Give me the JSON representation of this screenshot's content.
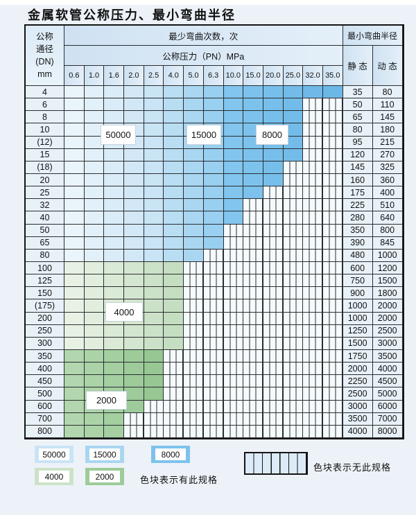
{
  "title": "金属软管公称压力、最小弯曲半径",
  "table": {
    "corner": [
      "公称",
      "通径",
      "(DN)",
      "mm"
    ],
    "bend_header": "最少弯曲次数，次",
    "radius_header": "最小弯曲半径",
    "pressure_header": "公称压力（PN）MPa",
    "static_label": "静 态",
    "dynamic_label": "动 态",
    "pressures": [
      "0.6",
      "1.0",
      "1.6",
      "2.0",
      "2.5",
      "4.0",
      "5.0",
      "6.3",
      "10.0",
      "15.0",
      "20.0",
      "25.0",
      "32.0",
      "35.0"
    ],
    "rows": [
      {
        "dn": "4",
        "colored": 14,
        "palette": "blue",
        "static": "35",
        "dynamic": "80"
      },
      {
        "dn": "6",
        "colored": 12,
        "palette": "blue",
        "static": "50",
        "dynamic": "110"
      },
      {
        "dn": "8",
        "colored": 12,
        "palette": "blue",
        "static": "65",
        "dynamic": "145"
      },
      {
        "dn": "10",
        "colored": 12,
        "palette": "blue",
        "static": "80",
        "dynamic": "180"
      },
      {
        "dn": "(12)",
        "colored": 12,
        "palette": "blue",
        "static": "95",
        "dynamic": "215"
      },
      {
        "dn": "15",
        "colored": 12,
        "palette": "blue",
        "static": "120",
        "dynamic": "270"
      },
      {
        "dn": "(18)",
        "colored": 11,
        "palette": "blue",
        "static": "145",
        "dynamic": "325"
      },
      {
        "dn": "20",
        "colored": 11,
        "palette": "blue",
        "static": "160",
        "dynamic": "360"
      },
      {
        "dn": "25",
        "colored": 10,
        "palette": "blue",
        "static": "175",
        "dynamic": "400"
      },
      {
        "dn": "32",
        "colored": 9,
        "palette": "blue",
        "static": "225",
        "dynamic": "510"
      },
      {
        "dn": "40",
        "colored": 9,
        "palette": "blue",
        "static": "280",
        "dynamic": "640"
      },
      {
        "dn": "50",
        "colored": 8,
        "palette": "blue",
        "static": "350",
        "dynamic": "800"
      },
      {
        "dn": "65",
        "colored": 8,
        "palette": "blue",
        "static": "390",
        "dynamic": "845"
      },
      {
        "dn": "80",
        "colored": 7,
        "palette": "blue",
        "static": "480",
        "dynamic": "1000"
      },
      {
        "dn": "100",
        "colored": 6,
        "palette": "green4",
        "static": "600",
        "dynamic": "1200"
      },
      {
        "dn": "125",
        "colored": 6,
        "palette": "green4",
        "static": "750",
        "dynamic": "1500"
      },
      {
        "dn": "150",
        "colored": 6,
        "palette": "green4",
        "static": "900",
        "dynamic": "1800"
      },
      {
        "dn": "(175)",
        "colored": 6,
        "palette": "green4",
        "static": "1000",
        "dynamic": "2000"
      },
      {
        "dn": "200",
        "colored": 6,
        "palette": "green4",
        "static": "1000",
        "dynamic": "2000"
      },
      {
        "dn": "250",
        "colored": 6,
        "palette": "green4",
        "static": "1250",
        "dynamic": "2500"
      },
      {
        "dn": "300",
        "colored": 6,
        "palette": "green4",
        "static": "1500",
        "dynamic": "3000"
      },
      {
        "dn": "350",
        "colored": 5,
        "palette": "green2",
        "static": "1750",
        "dynamic": "3500"
      },
      {
        "dn": "400",
        "colored": 5,
        "palette": "green2",
        "static": "2000",
        "dynamic": "4000"
      },
      {
        "dn": "450",
        "colored": 5,
        "palette": "green2",
        "static": "2250",
        "dynamic": "4500"
      },
      {
        "dn": "500",
        "colored": 5,
        "palette": "green2",
        "static": "2500",
        "dynamic": "5000"
      },
      {
        "dn": "600",
        "colored": 4,
        "palette": "green2",
        "static": "3000",
        "dynamic": "6000"
      },
      {
        "dn": "700",
        "colored": 3,
        "palette": "green2",
        "static": "3500",
        "dynamic": "7000"
      },
      {
        "dn": "800",
        "colored": 3,
        "palette": "green2",
        "static": "4000",
        "dynamic": "8000"
      }
    ]
  },
  "colors": {
    "blue": [
      "#eaf4fb",
      "#e2f0f9",
      "#daecf8",
      "#d2e8f6",
      "#c9e4f5",
      "#b9ddf3",
      "#a9d6f1",
      "#99cff0",
      "#82c5ee",
      "#7dc2ec",
      "#77bfeb",
      "#73bce9",
      "#6fb9e8",
      "#6bb7e6"
    ],
    "green4": [
      "#e8f2e4",
      "#e1eedd",
      "#daead6",
      "#d3e6cf",
      "#cce2c8",
      "#c5dec1"
    ],
    "green2": [
      "#b2d7ae",
      "#abd3a7",
      "#a4cfa0",
      "#9dcb99",
      "#97c793",
      "#90c38c"
    ],
    "stripe_fill": "#f5fafd",
    "grid_line": "#2a2d30",
    "header_bg": "#d8e8f5",
    "label_cell_bg": "#e8f1f8"
  },
  "overlays": {
    "o50000": {
      "label": "50000"
    },
    "o15000": {
      "label": "15000"
    },
    "o8000": {
      "label": "8000"
    },
    "o4000": {
      "label": "4000"
    },
    "o2000": {
      "label": "2000"
    }
  },
  "legend": {
    "items": [
      {
        "label": "50000",
        "color": "#c9e4f5"
      },
      {
        "label": "15000",
        "color": "#a9d6f1"
      },
      {
        "label": "8000",
        "color": "#7dc2ec"
      },
      {
        "label": "4000",
        "color": "#cce2c8"
      },
      {
        "label": "2000",
        "color": "#9dcb99"
      }
    ],
    "available_note": "色块表示有此规格",
    "unavailable_note": "色块表示无此规格"
  },
  "chart_data": {
    "type": "table",
    "title": "金属软管公称压力、最小弯曲半径",
    "column_group_headers": [
      "公称通径(DN)mm",
      "最少弯曲次数，次 — 公称压力（PN）MPa",
      "最小弯曲半径"
    ],
    "pressure_columns_mpa": [
      0.6,
      1.0,
      1.6,
      2.0,
      2.5,
      4.0,
      5.0,
      6.3,
      10.0,
      15.0,
      20.0,
      25.0,
      32.0,
      35.0
    ],
    "bend_cycle_zones_by_pn": {
      "50000": [
        "0.6",
        "1.0",
        "1.6",
        "2.0",
        "2.5"
      ],
      "15000": [
        "4.0",
        "5.0",
        "6.3"
      ],
      "8000": [
        "10.0",
        "15.0",
        "20.0",
        "25.0",
        "32.0",
        "35.0"
      ],
      "4000": [
        "0.6",
        "1.0",
        "1.6",
        "2.0",
        "2.5",
        "4.0"
      ],
      "2000": [
        "0.6",
        "1.0",
        "1.6",
        "2.0",
        "2.5"
      ]
    },
    "rows": [
      {
        "dn": "4",
        "max_pn_available": 35.0,
        "min_bend_cycles_zone": "50000/15000/8000",
        "static_radius": 35,
        "dynamic_radius": 80
      },
      {
        "dn": "6",
        "max_pn_available": 25.0,
        "min_bend_cycles_zone": "50000/15000/8000",
        "static_radius": 50,
        "dynamic_radius": 110
      },
      {
        "dn": "8",
        "max_pn_available": 25.0,
        "min_bend_cycles_zone": "50000/15000/8000",
        "static_radius": 65,
        "dynamic_radius": 145
      },
      {
        "dn": "10",
        "max_pn_available": 25.0,
        "min_bend_cycles_zone": "50000/15000/8000",
        "static_radius": 80,
        "dynamic_radius": 180
      },
      {
        "dn": "(12)",
        "max_pn_available": 25.0,
        "min_bend_cycles_zone": "50000/15000/8000",
        "static_radius": 95,
        "dynamic_radius": 215
      },
      {
        "dn": "15",
        "max_pn_available": 25.0,
        "min_bend_cycles_zone": "50000/15000/8000",
        "static_radius": 120,
        "dynamic_radius": 270
      },
      {
        "dn": "(18)",
        "max_pn_available": 20.0,
        "min_bend_cycles_zone": "50000/15000/8000",
        "static_radius": 145,
        "dynamic_radius": 325
      },
      {
        "dn": "20",
        "max_pn_available": 20.0,
        "min_bend_cycles_zone": "50000/15000/8000",
        "static_radius": 160,
        "dynamic_radius": 360
      },
      {
        "dn": "25",
        "max_pn_available": 15.0,
        "min_bend_cycles_zone": "50000/15000/8000",
        "static_radius": 175,
        "dynamic_radius": 400
      },
      {
        "dn": "32",
        "max_pn_available": 10.0,
        "min_bend_cycles_zone": "50000/15000/8000",
        "static_radius": 225,
        "dynamic_radius": 510
      },
      {
        "dn": "40",
        "max_pn_available": 10.0,
        "min_bend_cycles_zone": "50000/15000/8000",
        "static_radius": 280,
        "dynamic_radius": 640
      },
      {
        "dn": "50",
        "max_pn_available": 6.3,
        "min_bend_cycles_zone": "50000/15000",
        "static_radius": 350,
        "dynamic_radius": 800
      },
      {
        "dn": "65",
        "max_pn_available": 6.3,
        "min_bend_cycles_zone": "50000/15000",
        "static_radius": 390,
        "dynamic_radius": 845
      },
      {
        "dn": "80",
        "max_pn_available": 5.0,
        "min_bend_cycles_zone": "50000/15000",
        "static_radius": 480,
        "dynamic_radius": 1000
      },
      {
        "dn": "100",
        "max_pn_available": 4.0,
        "min_bend_cycles_zone": "4000",
        "static_radius": 600,
        "dynamic_radius": 1200
      },
      {
        "dn": "125",
        "max_pn_available": 4.0,
        "min_bend_cycles_zone": "4000",
        "static_radius": 750,
        "dynamic_radius": 1500
      },
      {
        "dn": "150",
        "max_pn_available": 4.0,
        "min_bend_cycles_zone": "4000",
        "static_radius": 900,
        "dynamic_radius": 1800
      },
      {
        "dn": "(175)",
        "max_pn_available": 4.0,
        "min_bend_cycles_zone": "4000",
        "static_radius": 1000,
        "dynamic_radius": 2000
      },
      {
        "dn": "200",
        "max_pn_available": 4.0,
        "min_bend_cycles_zone": "4000",
        "static_radius": 1000,
        "dynamic_radius": 2000
      },
      {
        "dn": "250",
        "max_pn_available": 4.0,
        "min_bend_cycles_zone": "4000",
        "static_radius": 1250,
        "dynamic_radius": 2500
      },
      {
        "dn": "300",
        "max_pn_available": 4.0,
        "min_bend_cycles_zone": "4000",
        "static_radius": 1500,
        "dynamic_radius": 3000
      },
      {
        "dn": "350",
        "max_pn_available": 2.5,
        "min_bend_cycles_zone": "2000",
        "static_radius": 1750,
        "dynamic_radius": 3500
      },
      {
        "dn": "400",
        "max_pn_available": 2.5,
        "min_bend_cycles_zone": "2000",
        "static_radius": 2000,
        "dynamic_radius": 4000
      },
      {
        "dn": "450",
        "max_pn_available": 2.5,
        "min_bend_cycles_zone": "2000",
        "static_radius": 2250,
        "dynamic_radius": 4500
      },
      {
        "dn": "500",
        "max_pn_available": 2.5,
        "min_bend_cycles_zone": "2000",
        "static_radius": 2500,
        "dynamic_radius": 5000
      },
      {
        "dn": "600",
        "max_pn_available": 2.0,
        "min_bend_cycles_zone": "2000",
        "static_radius": 3000,
        "dynamic_radius": 6000
      },
      {
        "dn": "700",
        "max_pn_available": 1.6,
        "min_bend_cycles_zone": "2000",
        "static_radius": 3500,
        "dynamic_radius": 7000
      },
      {
        "dn": "800",
        "max_pn_available": 1.6,
        "min_bend_cycles_zone": "2000",
        "static_radius": 4000,
        "dynamic_radius": 8000
      }
    ],
    "legend": {
      "available_colors": {
        "50000": "#c9e4f5",
        "15000": "#a9d6f1",
        "8000": "#7dc2ec",
        "4000": "#cce2c8",
        "2000": "#9dcb99"
      },
      "available_note": "色块表示有此规格",
      "unavailable_note": "色块表示无此规格 (striped cells)"
    },
    "grid": true,
    "legend_position": "bottom"
  }
}
